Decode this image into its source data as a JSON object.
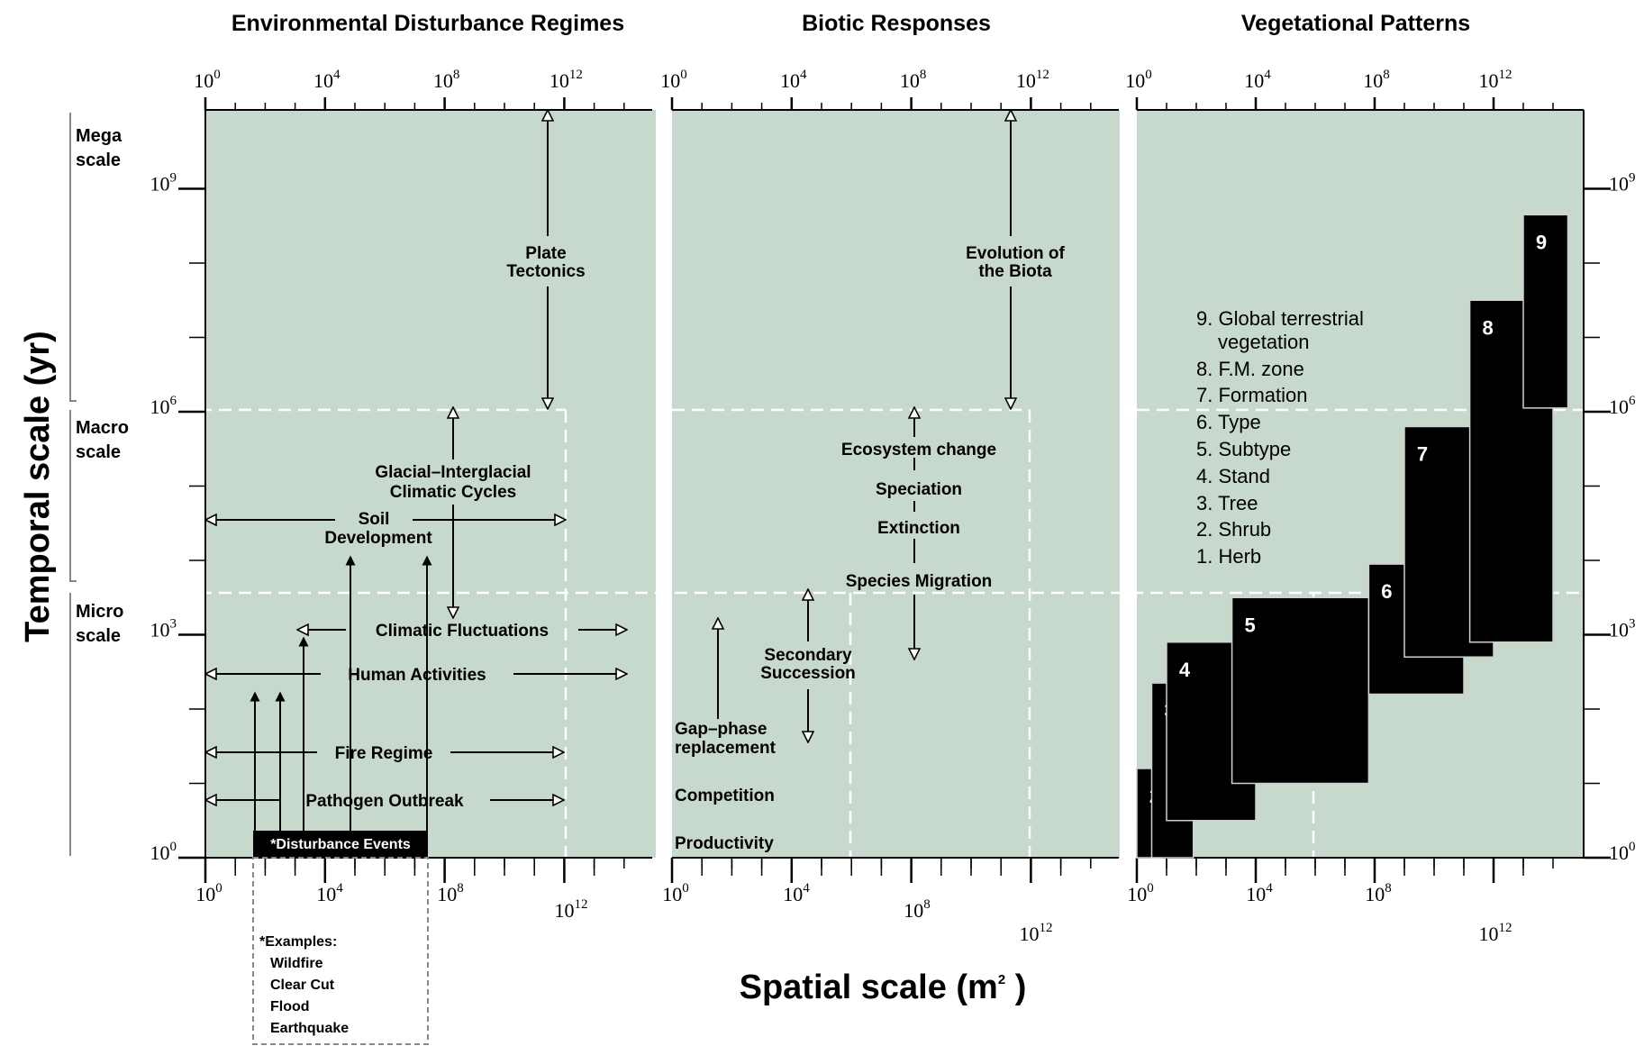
{
  "panels": {
    "disturbance": {
      "title": "Environmental Disturbance Regimes"
    },
    "biotic": {
      "title": "Biotic Responses"
    },
    "vegetation": {
      "title": "Vegetational Patterns"
    }
  },
  "axes": {
    "x_title_main": "Spatial scale (m",
    "x_title_sup": "2",
    "x_title_end": " )",
    "y_title": "Temporal scale (yr)",
    "tick_base": "10",
    "x_exponents": [
      "0",
      "4",
      "8",
      "12"
    ],
    "y_exponents": [
      "0",
      "3",
      "6",
      "9"
    ]
  },
  "scales": {
    "mega": [
      "Mega",
      "scale"
    ],
    "macro": [
      "Macro",
      "scale"
    ],
    "micro": [
      "Micro",
      "scale"
    ]
  },
  "disturbance_labels": {
    "plate": [
      "Plate",
      "Tectonics"
    ],
    "glacial": [
      "Glacial–Interglacial",
      "Climatic Cycles"
    ],
    "soil": [
      "Soil",
      "Development"
    ],
    "climatic": "Climatic Fluctuations",
    "human": "Human Activities",
    "fire": "Fire Regime",
    "pathogen": "Pathogen Outbreak",
    "events": "*Disturbance Events",
    "examples": [
      "*Examples:",
      "Wildfire",
      "Clear Cut",
      "Flood",
      "Earthquake"
    ]
  },
  "biotic_labels": {
    "evolution": [
      "Evolution of",
      "the Biota"
    ],
    "ecosystem": "Ecosystem change",
    "speciation": "Speciation",
    "extinction": "Extinction",
    "migration": "Species Migration",
    "secondary": [
      "Secondary",
      "Succession"
    ],
    "gap": [
      "Gap–phase",
      "replacement"
    ],
    "competition": "Competition",
    "productivity": "Productivity"
  },
  "legend": [
    "9. Global terrestrial",
    "vegetation",
    "8. F.M. zone",
    "7. Formation",
    "6. Type",
    "5. Subtype",
    "4. Stand",
    "3. Tree",
    "2. Shrub",
    "1. Herb"
  ],
  "vegetation_units": [
    {
      "num": "1",
      "name": "Herb"
    },
    {
      "num": "2",
      "name": "Shrub"
    },
    {
      "num": "3",
      "name": "Tree"
    },
    {
      "num": "4",
      "name": "Stand"
    },
    {
      "num": "5",
      "name": "Subtype"
    },
    {
      "num": "6",
      "name": "Type"
    },
    {
      "num": "7",
      "name": "Formation"
    },
    {
      "num": "8",
      "name": "F.M. zone"
    },
    {
      "num": "9",
      "name": "Global terrestrial vegetation"
    }
  ],
  "colors": {
    "panel": "#c6d9cc",
    "box": "#000000",
    "grid": "#ffffff"
  }
}
